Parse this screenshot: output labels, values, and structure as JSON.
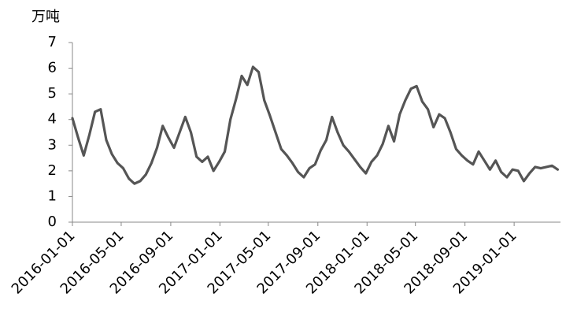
{
  "chart_data": {
    "type": "line",
    "y_label": "万吨",
    "color": "#555555",
    "x": [
      "2016-01-01",
      "2016-01-15",
      "2016-01-29",
      "2016-02-12",
      "2016-02-26",
      "2016-03-11",
      "2016-03-25",
      "2016-04-08",
      "2016-04-22",
      "2016-05-06",
      "2016-05-20",
      "2016-06-03",
      "2016-06-17",
      "2016-07-01",
      "2016-07-15",
      "2016-07-29",
      "2016-08-12",
      "2016-08-26",
      "2016-09-09",
      "2016-09-23",
      "2016-10-07",
      "2016-10-21",
      "2016-11-04",
      "2016-11-18",
      "2016-12-02",
      "2016-12-16",
      "2016-12-30",
      "2017-01-13",
      "2017-01-27",
      "2017-02-10",
      "2017-02-24",
      "2017-03-10",
      "2017-03-24",
      "2017-04-07",
      "2017-04-21",
      "2017-05-05",
      "2017-05-19",
      "2017-06-02",
      "2017-06-16",
      "2017-06-30",
      "2017-07-14",
      "2017-07-28",
      "2017-08-11",
      "2017-08-25",
      "2017-09-08",
      "2017-09-22",
      "2017-10-06",
      "2017-10-20",
      "2017-11-03",
      "2017-11-17",
      "2017-12-01",
      "2017-12-15",
      "2017-12-29",
      "2018-01-12",
      "2018-01-26",
      "2018-02-09",
      "2018-02-23",
      "2018-03-09",
      "2018-03-23",
      "2018-04-06",
      "2018-04-20",
      "2018-05-04",
      "2018-05-18",
      "2018-06-01",
      "2018-06-15",
      "2018-06-29",
      "2018-07-13",
      "2018-07-27",
      "2018-08-10",
      "2018-08-24",
      "2018-09-07",
      "2018-09-21",
      "2018-10-05",
      "2018-10-19",
      "2018-11-02",
      "2018-11-16",
      "2018-11-30",
      "2018-12-14",
      "2018-12-28",
      "2019-01-11",
      "2019-01-25",
      "2019-02-08",
      "2019-02-22",
      "2019-03-08",
      "2019-03-22",
      "2019-04-05",
      "2019-04-19"
    ],
    "values": [
      4.05,
      3.3,
      2.6,
      3.4,
      4.3,
      4.4,
      3.2,
      2.65,
      2.3,
      2.1,
      1.7,
      1.5,
      1.6,
      1.85,
      2.3,
      2.9,
      3.75,
      3.3,
      2.9,
      3.5,
      4.1,
      3.5,
      2.55,
      2.35,
      2.55,
      2.0,
      2.35,
      2.75,
      4.0,
      4.8,
      5.7,
      5.35,
      6.05,
      5.85,
      4.75,
      4.15,
      3.5,
      2.85,
      2.6,
      2.3,
      1.95,
      1.75,
      2.1,
      2.25,
      2.8,
      3.2,
      4.1,
      3.5,
      3.0,
      2.75,
      2.45,
      2.15,
      1.9,
      2.35,
      2.6,
      3.05,
      3.75,
      3.15,
      4.2,
      4.75,
      5.2,
      5.3,
      4.7,
      4.4,
      3.7,
      4.2,
      4.05,
      3.5,
      2.85,
      2.6,
      2.4,
      2.25,
      2.75,
      2.4,
      2.05,
      2.4,
      1.95,
      1.75,
      2.05,
      2.0,
      1.6,
      1.9,
      2.15,
      2.1,
      2.15,
      2.2,
      2.05
    ],
    "xlim": [
      "2016-01-01",
      "2019-04-26"
    ],
    "xticks": [
      "2016-01-01",
      "2016-05-01",
      "2016-09-01",
      "2017-01-01",
      "2017-05-01",
      "2017-09-01",
      "2018-01-01",
      "2018-05-01",
      "2018-09-01",
      "2019-01-01"
    ],
    "ylim": [
      0,
      7
    ],
    "yticks": [
      0,
      1,
      2,
      3,
      4,
      5,
      6,
      7
    ],
    "grid": false
  }
}
